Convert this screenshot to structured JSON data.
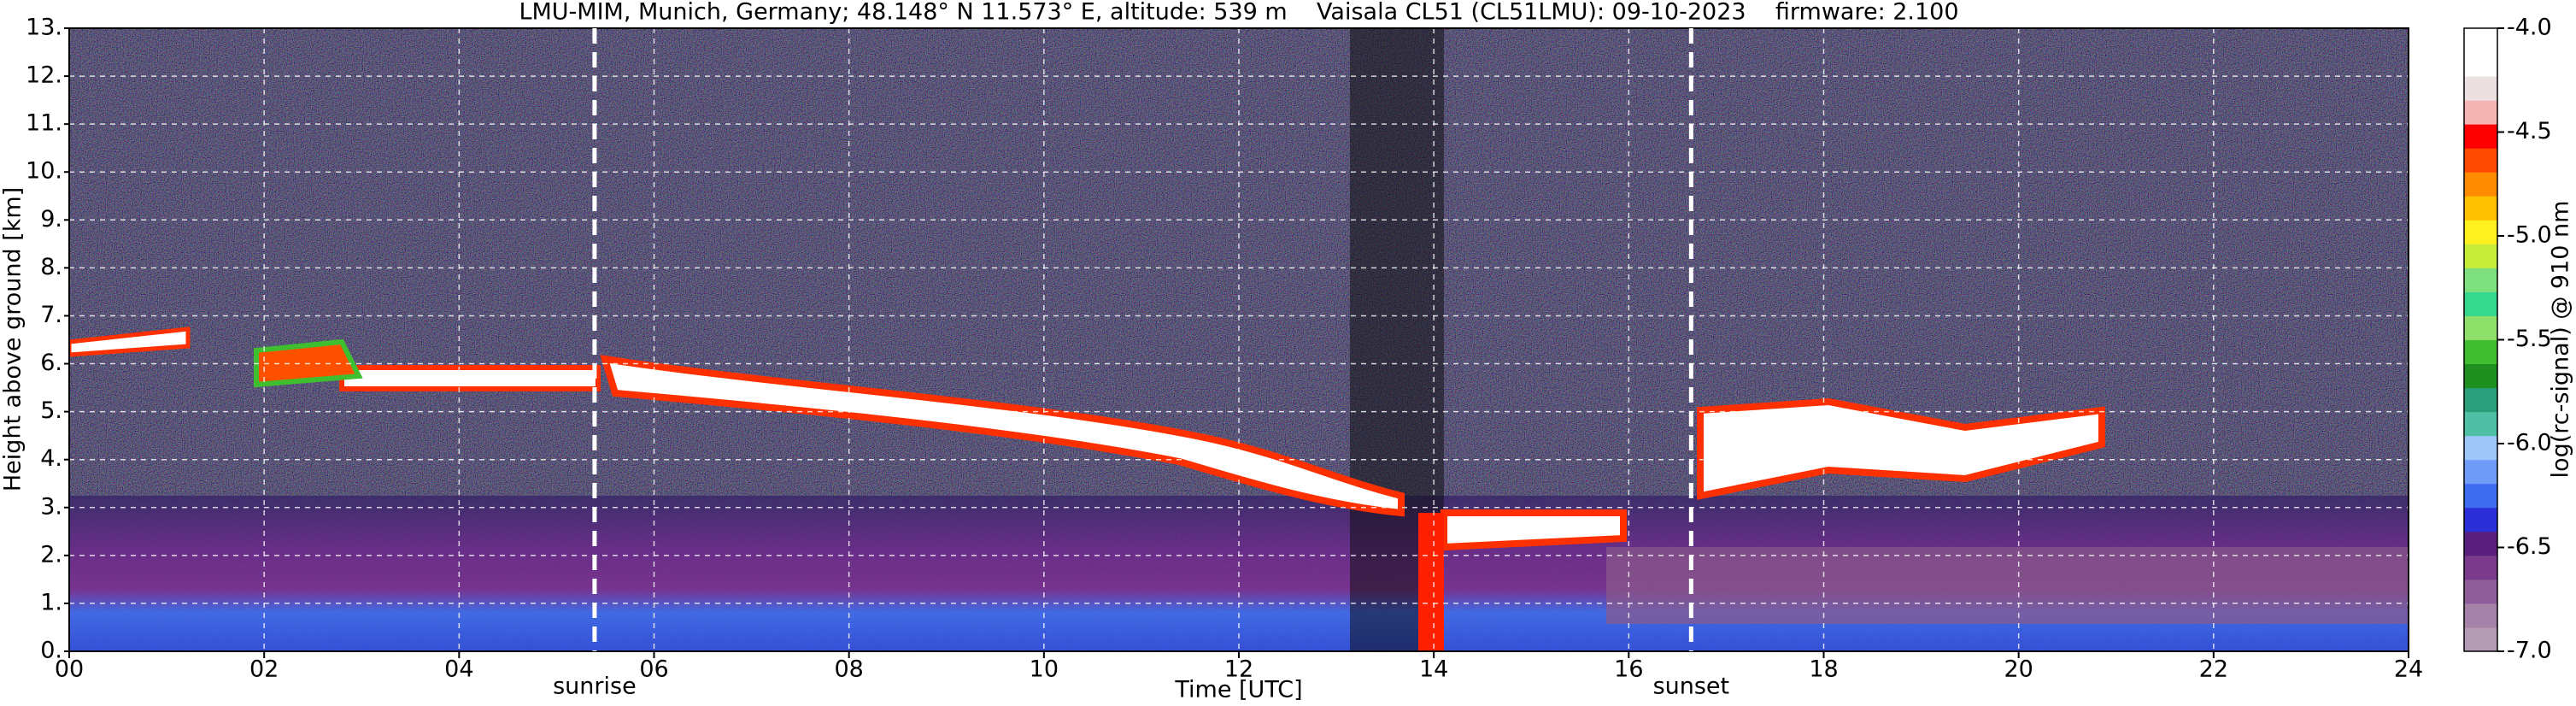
{
  "chart_data": {
    "type": "heatmap",
    "title": "LMU-MIM, Munich, Germany; 48.148° N 11.573° E, altitude: 539 m    Vaisala CL51 (CL51LMU): 09-10-2023    firmware: 2.100",
    "xlabel": "Time [UTC]",
    "ylabel": "Height above ground [km]",
    "xlim": [
      0,
      24
    ],
    "xticks": [
      {
        "value": 0,
        "label": "00"
      },
      {
        "value": 2,
        "label": "02"
      },
      {
        "value": 4,
        "label": "04"
      },
      {
        "value": 6,
        "label": "06"
      },
      {
        "value": 8,
        "label": "08"
      },
      10,
      12,
      14,
      16,
      18,
      20,
      22,
      24
    ],
    "ylim": [
      0,
      13
    ],
    "yticks": [
      {
        "value": 0,
        "label": "0."
      },
      {
        "value": 1,
        "label": "1."
      },
      {
        "value": 2,
        "label": "2."
      },
      {
        "value": 3,
        "label": "3."
      },
      {
        "value": 4,
        "label": "4."
      },
      {
        "value": 5,
        "label": "5."
      },
      {
        "value": 6,
        "label": "6."
      },
      {
        "value": 7,
        "label": "7."
      },
      {
        "value": 8,
        "label": "8."
      },
      {
        "value": 9,
        "label": "9."
      },
      {
        "value": 10,
        "label": "10."
      },
      {
        "value": 11,
        "label": "11."
      },
      {
        "value": 12,
        "label": "12."
      },
      {
        "value": 13,
        "label": "13."
      }
    ],
    "grid": true,
    "annotations": [
      {
        "text": "sunrise",
        "x": 5.39
      },
      {
        "text": "sunset",
        "x": 16.64
      }
    ],
    "colorbar": {
      "label": "log(rc-signal) @ 910 nm",
      "clim": [
        -7,
        -4
      ],
      "ticks": [
        {
          "value": -7,
          "label": "-7.0"
        },
        -6.5,
        {
          "value": -6,
          "label": "-6.0"
        },
        -5.5,
        {
          "value": -5,
          "label": "-5.0"
        },
        -4.5,
        {
          "value": -4,
          "label": "-4.0"
        }
      ],
      "colors": [
        "#b39bb3",
        "#a583a8",
        "#8e5e9a",
        "#7a3b8d",
        "#5a1f7c",
        "#2a2fd8",
        "#3f6cf0",
        "#6f9cf7",
        "#9ec6f8",
        "#4fbfa5",
        "#2aa07a",
        "#1f8f1f",
        "#3fbf2f",
        "#8ee06a",
        "#36d88f",
        "#7fe07f",
        "#c8ec3a",
        "#fff020",
        "#ffc000",
        "#ff8c00",
        "#ff4a00",
        "#ff0000",
        "#f5b5b5",
        "#ece0e0",
        "#ffffff",
        "#ffffff"
      ]
    }
  }
}
